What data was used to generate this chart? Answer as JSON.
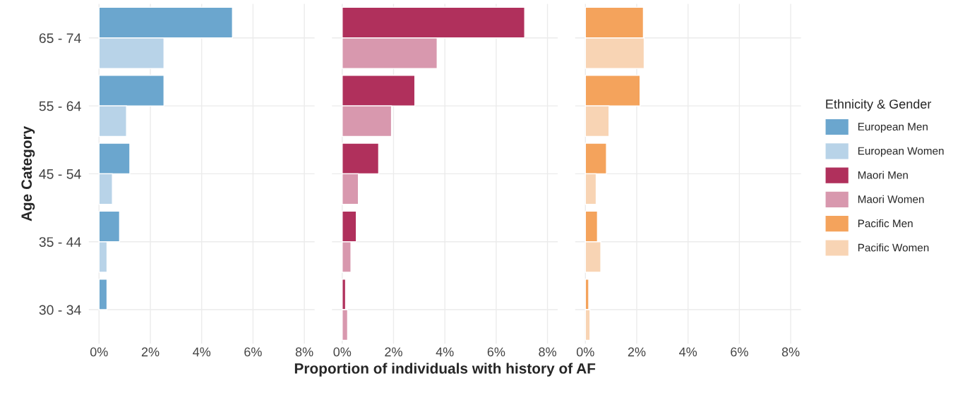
{
  "chart_data": [
    {
      "type": "bar",
      "orientation": "horizontal",
      "ylabel": "Age Category",
      "categories": [
        "65 - 74",
        "55 - 64",
        "45 - 54",
        "35 - 44",
        "30 - 34"
      ],
      "series": [
        {
          "name": "European Men",
          "color": "#6ba6ce",
          "values": [
            5.2,
            2.53,
            1.2,
            0.8,
            0.31
          ]
        },
        {
          "name": "European Women",
          "color": "#b8d3e8",
          "values": [
            2.53,
            1.07,
            0.52,
            0.31,
            null
          ]
        }
      ],
      "xlim": [
        -0.4,
        8.4
      ],
      "xticks": [
        {
          "value": 0,
          "label": "0%"
        },
        {
          "value": 2,
          "label": "2%"
        },
        {
          "value": 4,
          "label": "4%"
        },
        {
          "value": 6,
          "label": "6%"
        },
        {
          "value": 8,
          "label": "8%"
        }
      ],
      "grid": true,
      "legend": "right"
    },
    {
      "type": "bar",
      "orientation": "horizontal",
      "xlabel": "Proportion of individuals with history of AF",
      "categories": [
        null,
        null,
        null,
        null,
        null
      ],
      "series": [
        {
          "name": "Maori Men",
          "color": "#b0305c",
          "values": [
            7.11,
            2.83,
            1.42,
            0.55,
            0.13
          ]
        },
        {
          "name": "Maori Women",
          "color": "#d898ae",
          "values": [
            3.7,
            1.92,
            0.63,
            0.34,
            0.21
          ]
        }
      ],
      "xlim": [
        -0.4,
        8.4
      ],
      "xticks": [
        {
          "value": 0,
          "label": "0%"
        },
        {
          "value": 2,
          "label": "2%"
        },
        {
          "value": 4,
          "label": "4%"
        },
        {
          "value": 6,
          "label": "6%"
        },
        {
          "value": 8,
          "label": "8%"
        }
      ],
      "grid": true,
      "legend": "right",
      "tick_labels": "x"
    },
    {
      "type": "bar",
      "orientation": "horizontal",
      "legend_title": "Ethnicity & Gender",
      "categories": [
        null,
        null,
        null,
        null,
        null
      ],
      "series": [
        {
          "name": "Pacific Men",
          "color": "#f4a35c",
          "values": [
            2.26,
            2.13,
            0.82,
            0.47,
            0.13
          ]
        },
        {
          "name": "Pacific Women",
          "color": "#f8d4b4",
          "values": [
            2.29,
            0.92,
            0.42,
            0.6,
            0.18
          ]
        }
      ],
      "xlim": [
        -0.4,
        8.4
      ],
      "xticks": [
        {
          "value": 0,
          "label": "0%"
        },
        {
          "value": 2,
          "label": "2%"
        },
        {
          "value": 4,
          "label": "4%"
        },
        {
          "value": 6,
          "label": "6%"
        },
        {
          "value": 8,
          "label": "8%"
        }
      ],
      "grid": true,
      "legend": "right",
      "tick_labels": "x"
    }
  ]
}
